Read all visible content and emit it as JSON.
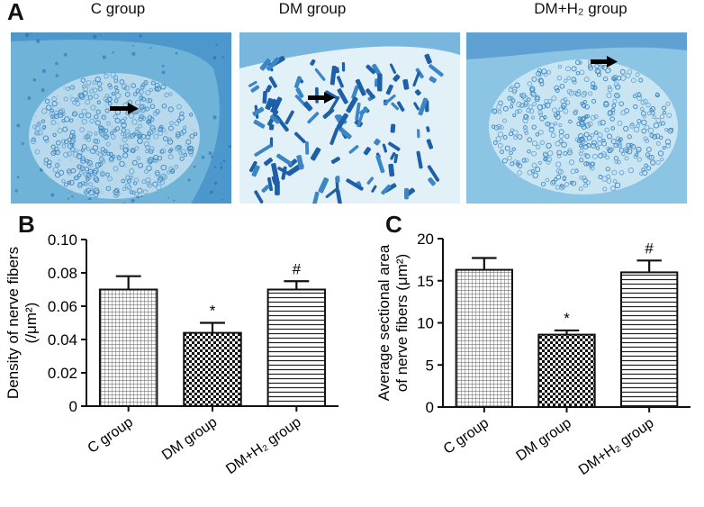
{
  "figure": {
    "panel_a": {
      "letter": "A",
      "titles": [
        "C group",
        "DM group",
        "DM+H₂ group"
      ]
    },
    "colors": {
      "stain_bg": "#6fb3d9",
      "stain_dark": "#1f5fa8",
      "stain_light": "#d8ecf4"
    }
  },
  "chart_data": [
    {
      "panel": "B",
      "type": "bar",
      "categories": [
        "C group",
        "DM group",
        "DM+H₂ group"
      ],
      "values": [
        0.07,
        0.044,
        0.07
      ],
      "errors": [
        0.008,
        0.006,
        0.005
      ],
      "significance": [
        "",
        "*",
        "#"
      ],
      "patterns": [
        "grid",
        "checker",
        "hlines"
      ],
      "ylabel_line1": "Density of nerve fibers",
      "ylabel_line2": "(/μm²)",
      "ylim": [
        0,
        0.1
      ],
      "yticks": [
        "0",
        "0.02",
        "0.04",
        "0.06",
        "0.08",
        "0.10"
      ],
      "ytick_values": [
        0,
        0.02,
        0.04,
        0.06,
        0.08,
        0.1
      ]
    },
    {
      "panel": "C",
      "type": "bar",
      "categories": [
        "C group",
        "DM group",
        "DM+H₂ group"
      ],
      "values": [
        16.3,
        8.6,
        16.0
      ],
      "errors": [
        1.4,
        0.5,
        1.4
      ],
      "significance": [
        "",
        "*",
        "#"
      ],
      "patterns": [
        "grid",
        "checker",
        "hlines"
      ],
      "ylabel_line1": "Average sectional area",
      "ylabel_line2": "of nerve fibers (μm²)",
      "ylim": [
        0,
        20
      ],
      "yticks": [
        "0",
        "5",
        "10",
        "15",
        "20"
      ],
      "ytick_values": [
        0,
        5,
        10,
        15,
        20
      ]
    }
  ]
}
